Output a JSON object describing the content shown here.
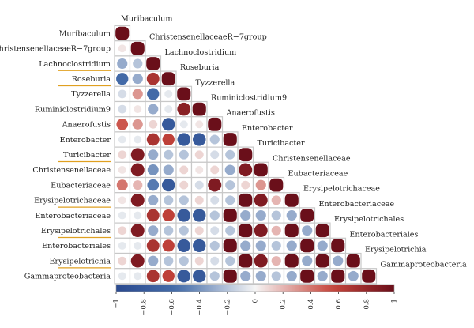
{
  "chart_data": {
    "type": "heatmap",
    "variables": [
      "Muribaculum",
      "ChristensenellaceaeR−7group",
      "Lachnoclostridium",
      "Roseburia",
      "Tyzzerella",
      "Ruminiclostridium9",
      "Anaerofustis",
      "Enterobacter",
      "Turicibacter",
      "Christensenellaceae",
      "Eubacteriaceae",
      "Erysipelotrichaceae",
      "Enterobacteriaceae",
      "Erysipelotrichales",
      "Enterobacteriales",
      "Erysipelotrichia",
      "Gammaproteobacteria"
    ],
    "highlighted": [
      "Lachnoclostridium",
      "Roseburia",
      "Turicibacter",
      "Erysipelotrichaceae",
      "Erysipelotrichales",
      "Erysipelotrichia"
    ],
    "lower_triangle": [
      [
        1
      ],
      [
        0.05,
        1
      ],
      [
        -0.3,
        -0.2,
        1
      ],
      [
        -0.6,
        -0.3,
        0.7,
        1
      ],
      [
        -0.1,
        0.3,
        -0.6,
        -0.05,
        1
      ],
      [
        -0.1,
        0.05,
        -0.3,
        -0.05,
        0.85,
        1
      ],
      [
        0.5,
        0.3,
        0.1,
        -0.8,
        -0.05,
        0.05,
        1
      ],
      [
        -0.05,
        -0.05,
        0.7,
        0.6,
        -0.8,
        -0.8,
        -0.2,
        1
      ],
      [
        0.1,
        0.9,
        -0.3,
        -0.2,
        -0.2,
        0.1,
        -0.1,
        -0.2,
        1
      ],
      [
        0.05,
        0.9,
        -0.4,
        -0.3,
        0.1,
        0.05,
        0.1,
        -0.3,
        0.9,
        1
      ],
      [
        0.4,
        0.2,
        -0.5,
        -0.8,
        0.1,
        -0.1,
        0.9,
        -0.2,
        0.1,
        0.3,
        1
      ],
      [
        0.05,
        0.9,
        -0.3,
        -0.2,
        -0.2,
        0.1,
        -0.1,
        -0.2,
        1,
        0.9,
        0.2,
        1
      ],
      [
        -0.05,
        -0.05,
        0.7,
        0.6,
        -0.8,
        -0.8,
        -0.2,
        1,
        -0.3,
        -0.3,
        -0.2,
        -0.3,
        1
      ],
      [
        0.1,
        0.9,
        -0.3,
        -0.2,
        -0.2,
        0.1,
        -0.1,
        -0.2,
        1,
        0.9,
        0.2,
        1,
        -0.3,
        1
      ],
      [
        -0.05,
        -0.05,
        0.7,
        0.6,
        -0.8,
        -0.8,
        -0.2,
        1,
        -0.3,
        -0.3,
        -0.2,
        -0.3,
        1,
        -0.3,
        1
      ],
      [
        0.1,
        0.9,
        -0.3,
        -0.2,
        -0.2,
        0.1,
        -0.1,
        -0.2,
        1,
        0.9,
        0.2,
        1,
        -0.3,
        1,
        -0.3,
        1
      ],
      [
        -0.05,
        -0.05,
        0.7,
        0.6,
        -0.8,
        -0.8,
        -0.2,
        1,
        -0.3,
        -0.3,
        -0.2,
        -0.3,
        1,
        -0.3,
        1,
        -0.3,
        1
      ]
    ],
    "colorbar": {
      "range": [
        -1,
        1
      ],
      "ticks": [
        "−1",
        "−0.8",
        "−0.6",
        "−0.4",
        "−0.2",
        "0",
        "0.2",
        "0.4",
        "0.6",
        "0.8",
        "1"
      ],
      "low_color": "#2b4a8f",
      "mid_color": "#f5f5f5",
      "high_color": "#6a0f1a"
    },
    "accent_underline_color": "#e0a020"
  }
}
